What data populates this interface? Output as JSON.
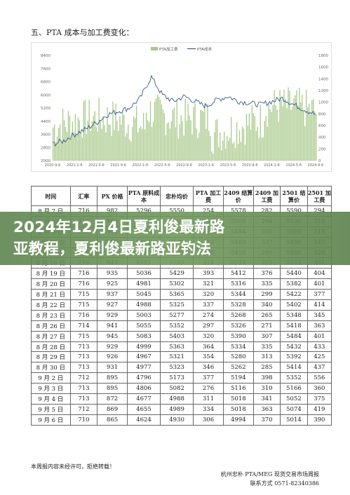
{
  "section_title": "五、PTA 成本与加工费变化：",
  "chart_data": {
    "type": "line",
    "legend": [
      "PTA加工费",
      "PTA成本"
    ],
    "legend_position": "top",
    "x_ticks": [
      "2020-9-6",
      "2021-1-6",
      "2021-5-6",
      "2021-9-6",
      "2022-1-6",
      "2022-5-6",
      "2022-9-6",
      "2023-1-6",
      "2023-5-6",
      "2023-9-6",
      "2024-1-6",
      "2024-5-6",
      "2024-9-6"
    ],
    "y_left_ticks": [
      "2000",
      "2800",
      "3600",
      "4400",
      "5200",
      "6000",
      "6800",
      "7600",
      "8400"
    ],
    "y_right_ticks": [
      "0",
      "200",
      "400",
      "600",
      "800",
      "1000",
      "1200",
      "1400",
      "1600",
      "1800"
    ],
    "y_left_range": [
      2000,
      8400
    ],
    "y_right_range": [
      0,
      1800
    ],
    "colors": {
      "fee": "#a8c98a",
      "cost": "#3a5a8f"
    }
  },
  "table": {
    "headers": [
      "时间",
      "汇率",
      "PX 价格",
      "PTA 原料成本",
      "忠朴均价",
      "PTA 加工费",
      "2409 结算价",
      "2409 加工费",
      "2501 结算价",
      "2501 加工费"
    ],
    "rows": [
      [
        "8 月 7 日",
        "716",
        "982",
        "5296",
        "5550",
        "254",
        "5578",
        "282",
        "5590",
        "294"
      ],
      [
        "8 月 8 日",
        "716",
        "966",
        "5214",
        "5466",
        "252",
        "5508",
        "294",
        "5530",
        "316"
      ],
      [
        "8 月 9 日",
        "716",
        "961",
        "5189",
        "5482",
        "293",
        "5494",
        "305",
        "5508",
        "319"
      ],
      [
        "8 月 12 日",
        "715",
        "955",
        "5151",
        "5473",
        "322",
        "5488",
        "337",
        "5496",
        "345"
      ],
      [
        "8 月 13 日",
        "715",
        "956",
        "5160",
        "5425",
        "265",
        "5450",
        "290",
        "5480",
        "320"
      ],
      [
        "8 月 16 日",
        "716",
        "945",
        "5191",
        "5505",
        "314",
        "5516",
        "325",
        "5522",
        "331"
      ],
      [
        "8 月 19 日",
        "716",
        "935",
        "5036",
        "5429",
        "393",
        "5412",
        "376",
        "5440",
        "404"
      ],
      [
        "8 月 20 日",
        "716",
        "925",
        "4981",
        "5302",
        "321",
        "5316",
        "335",
        "5382",
        "401"
      ],
      [
        "8 月 21 日",
        "715",
        "937",
        "5045",
        "5365",
        "320",
        "5344",
        "299",
        "5422",
        "377"
      ],
      [
        "8 月 22 日",
        "715",
        "927",
        "4988",
        "5325",
        "337",
        "5328",
        "340",
        "5402",
        "414"
      ],
      [
        "8 月 23 日",
        "716",
        "929",
        "5003",
        "5277",
        "274",
        "5268",
        "265",
        "5348",
        "345"
      ],
      [
        "8 月 26 日",
        "714",
        "941",
        "5055",
        "5352",
        "297",
        "5326",
        "271",
        "5418",
        "363"
      ],
      [
        "8 月 27 日",
        "715",
        "945",
        "5083",
        "5403",
        "320",
        "5390",
        "307",
        "5484",
        "401"
      ],
      [
        "8 月 28 日",
        "713",
        "929",
        "4999",
        "5363",
        "364",
        "5334",
        "335",
        "5432",
        "433"
      ],
      [
        "8 月 29 日",
        "713",
        "926",
        "4967",
        "5321",
        "354",
        "5280",
        "313",
        "5392",
        "425"
      ],
      [
        "8 月 30 日",
        "713",
        "931",
        "4977",
        "5323",
        "346",
        "5262",
        "285",
        "5414",
        "437"
      ],
      [
        "9 月 2 日",
        "712",
        "895",
        "4796",
        "5173",
        "377",
        "5194",
        "398",
        "5352",
        "556"
      ],
      [
        "9 月 3 日",
        "713",
        "895",
        "4806",
        "5082",
        "276",
        "5116",
        "310",
        "5166",
        "360"
      ],
      [
        "9 月 4 日",
        "713",
        "872",
        "4677",
        "4988",
        "311",
        "5018",
        "341",
        "5052",
        "375"
      ],
      [
        "9 月 5 日",
        "712",
        "869",
        "4655",
        "4989",
        "334",
        "5018",
        "363",
        "5074",
        "419"
      ],
      [
        "9 月 6 日",
        "710",
        "865",
        "4624",
        "4930",
        "306",
        "4994",
        "370",
        "5014",
        "390"
      ]
    ]
  },
  "banner": {
    "line1": "2024年12月4日夏利俊最新路",
    "line2": "亚教程，夏利俊最新路亚钓法"
  },
  "footer": {
    "disclaimer": "本周报内容未经许可，拒绝转载！",
    "org": "杭州忠朴 PTA/MEG 现货交易市场周报",
    "phone": "联系方式 0571-82340386"
  }
}
